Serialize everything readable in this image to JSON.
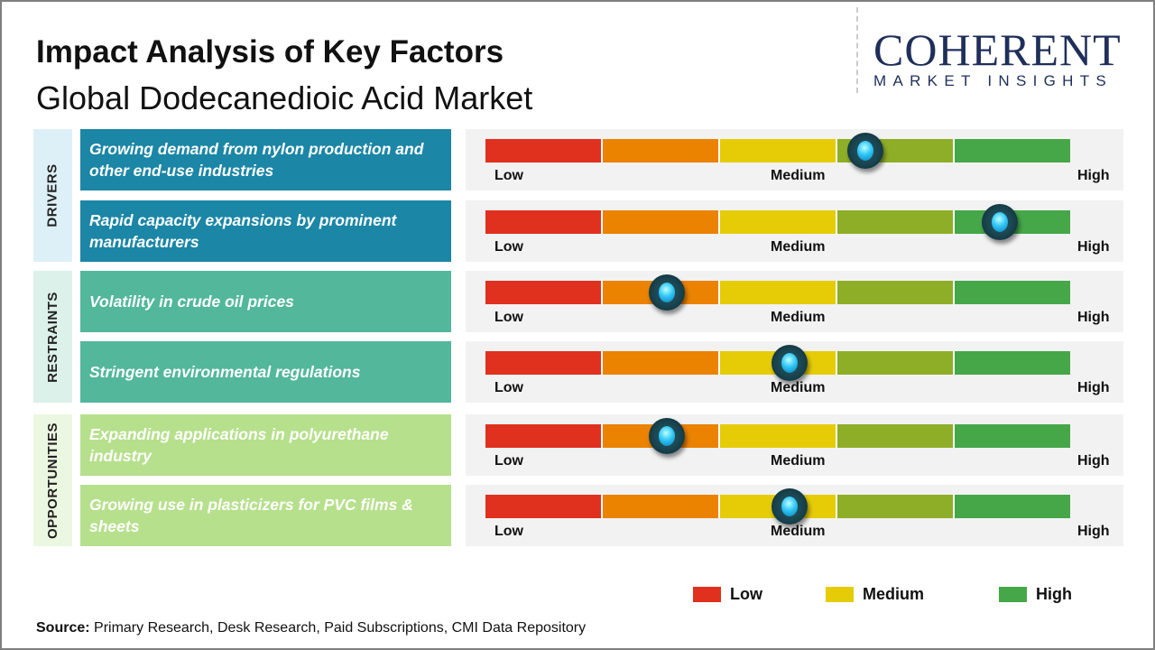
{
  "title": "Impact Analysis of Key Factors",
  "subtitle": "Global Dodecanedioic Acid Market",
  "logo": {
    "line1": "COHERENT",
    "line2": "MARKET INSIGHTS"
  },
  "chart_data": {
    "type": "gauge",
    "scale_labels": [
      "Low",
      "Medium",
      "High"
    ],
    "segment_colors": [
      "#e0301e",
      "#eb8200",
      "#e5cc07",
      "#8fae27",
      "#45a748"
    ],
    "groups": [
      {
        "name": "DRIVERS",
        "box_color": "#1b86a6",
        "side_color": "#ddf0f8",
        "factors": [
          {
            "label": "Growing demand from nylon production and other end-use industries",
            "value": 0.65
          },
          {
            "label": "Rapid capacity expansions by prominent manufacturers",
            "value": 0.88
          }
        ]
      },
      {
        "name": "RESTRAINTS",
        "box_color": "#52b79b",
        "side_color": "#dcf1ea",
        "factors": [
          {
            "label": "Volatility  in crude oil prices",
            "value": 0.31
          },
          {
            "label": "Stringent  environmental  regulations",
            "value": 0.52
          }
        ]
      },
      {
        "name": "OPPORTUNITIES",
        "box_color": "#b6e08c",
        "side_color": "#ecf7e1",
        "factors": [
          {
            "label": "Expanding  applications  in polyurethane industry",
            "value": 0.31
          },
          {
            "label": "Growing use in plasticizers for PVC films & sheets",
            "value": 0.52
          }
        ]
      }
    ],
    "legend": [
      {
        "label": "Low",
        "color": "#e0301e"
      },
      {
        "label": "Medium",
        "color": "#e5cc07"
      },
      {
        "label": "High",
        "color": "#45a748"
      }
    ]
  },
  "source": {
    "label": "Source:",
    "text": " Primary Research, Desk Research, Paid Subscriptions, CMI Data Repository"
  }
}
